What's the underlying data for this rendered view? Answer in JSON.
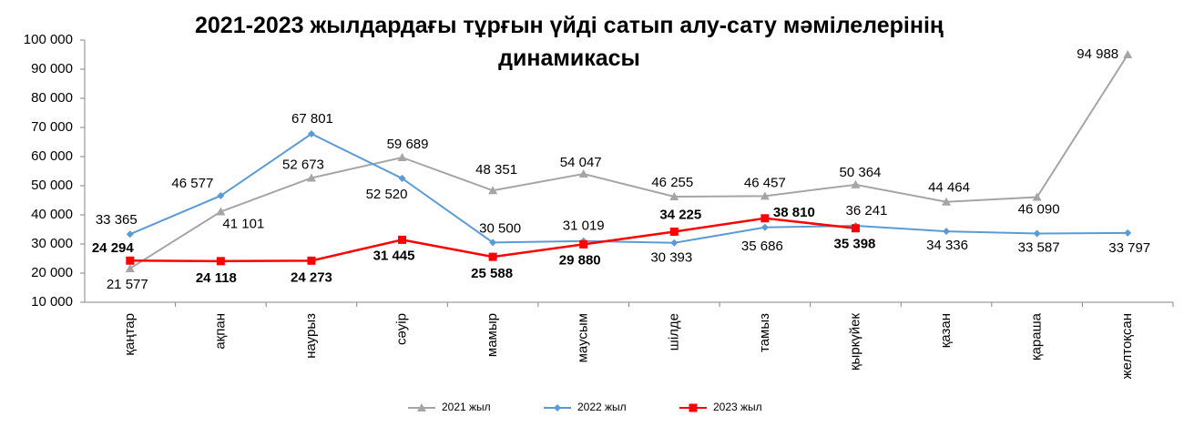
{
  "chart_data": {
    "type": "line",
    "title": "2021-2023 жылдардағы тұрғын үйді сатып алу-сату мәмілелерінің динамикасы",
    "categories": [
      "қаңтар",
      "ақпан",
      "наурыз",
      "сәуір",
      "мамыр",
      "маусым",
      "шілде",
      "тамыз",
      "қыркүйек",
      "қазан",
      "қараша",
      "желтоқсан"
    ],
    "series": [
      {
        "name": "2021 жыл",
        "color": "#a5a5a5",
        "marker": "triangle",
        "values": [
          21577,
          41101,
          52673,
          59689,
          48351,
          54047,
          46255,
          46457,
          50364,
          44464,
          46090,
          94988
        ],
        "value_labels": [
          "21 577",
          "41 101",
          "52 673",
          "59 689",
          "48 351",
          "54 047",
          "46 255",
          "46 457",
          "50 364",
          "44 464",
          "46 090",
          "94 988"
        ]
      },
      {
        "name": "2022 жыл",
        "color": "#5b9bd5",
        "marker": "diamond",
        "values": [
          33365,
          46577,
          67801,
          52520,
          30500,
          31019,
          30393,
          35686,
          36241,
          34336,
          33587,
          33797
        ],
        "value_labels": [
          "33 365",
          "46 577",
          "67 801",
          "52 520",
          "30 500",
          "31 019",
          "30 393",
          "35 686",
          "36 241",
          "34 336",
          "33 587",
          "33 797"
        ]
      },
      {
        "name": "2023 жыл",
        "color": "#ff0000",
        "marker": "square",
        "values": [
          24294,
          24118,
          24273,
          31445,
          25588,
          29880,
          34225,
          38810,
          35398,
          null,
          null,
          null
        ],
        "value_labels": [
          "24 294",
          "24 118",
          "24 273",
          "31 445",
          "25 588",
          "29 880",
          "34 225",
          "38 810",
          "35 398",
          null,
          null,
          null
        ]
      }
    ],
    "ylim": [
      10000,
      100000
    ],
    "yticks": [
      {
        "value": 10000,
        "label": "10 000"
      },
      {
        "value": 20000,
        "label": "20 000"
      },
      {
        "value": 30000,
        "label": "30 000"
      },
      {
        "value": 40000,
        "label": "40 000"
      },
      {
        "value": 50000,
        "label": "50 000"
      },
      {
        "value": 60000,
        "label": "60 000"
      },
      {
        "value": 70000,
        "label": "70 000"
      },
      {
        "value": 80000,
        "label": "80 000"
      },
      {
        "value": 90000,
        "label": "90 000"
      },
      {
        "value": 100000,
        "label": "100 000"
      }
    ],
    "legend": "bottom"
  }
}
